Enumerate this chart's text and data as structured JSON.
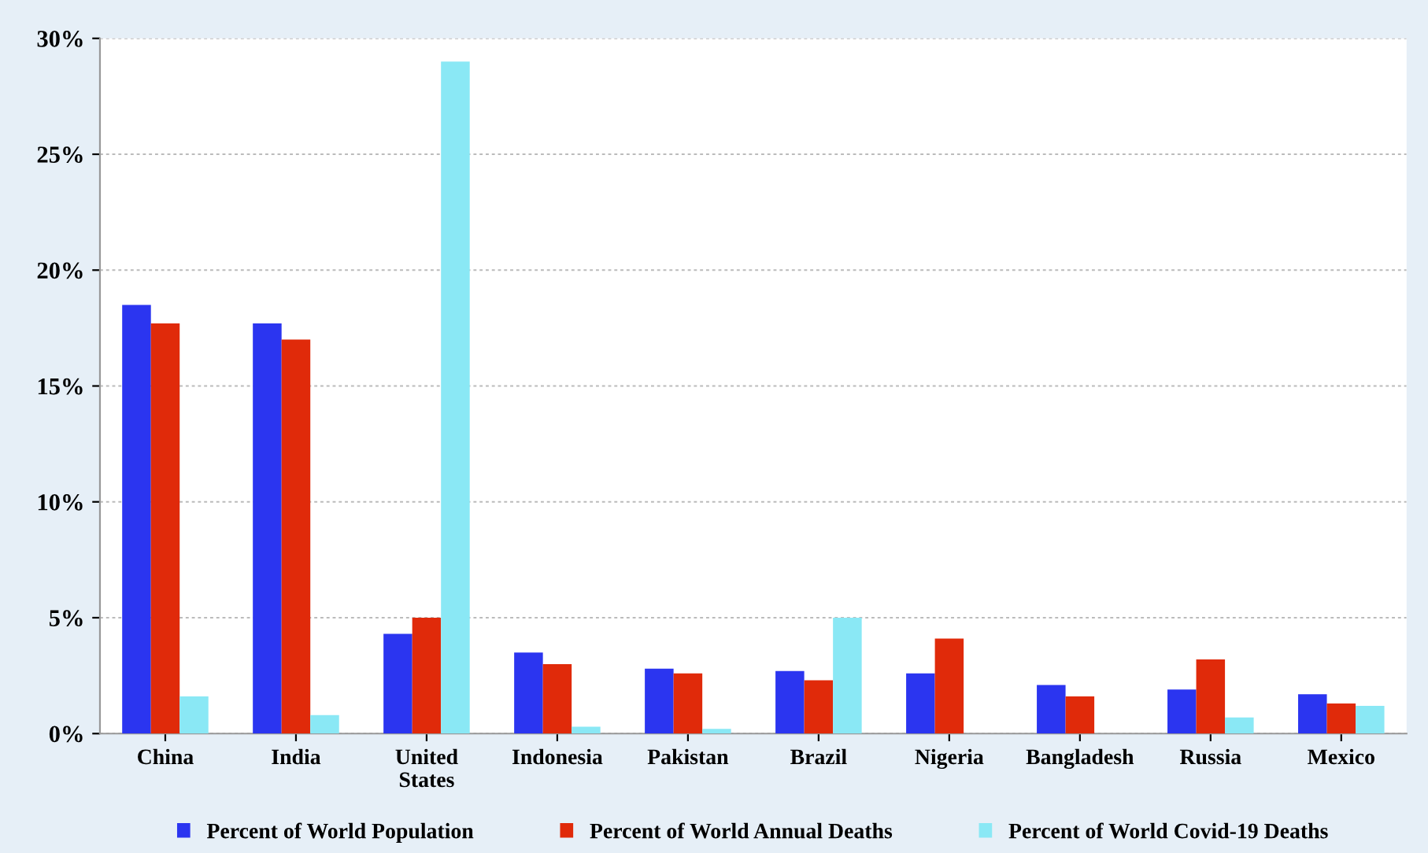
{
  "chart_data": {
    "type": "bar",
    "categories": [
      "China",
      "India",
      "United\nStates",
      "Indonesia",
      "Pakistan",
      "Brazil",
      "Nigeria",
      "Bangladesh",
      "Russia",
      "Mexico"
    ],
    "series": [
      {
        "name": "Percent of World Population",
        "color": "#2b35f0",
        "values": [
          18.5,
          17.7,
          4.3,
          3.5,
          2.8,
          2.7,
          2.6,
          2.1,
          1.9,
          1.7
        ]
      },
      {
        "name": "Percent of World Annual Deaths",
        "color": "#e02a0a",
        "values": [
          17.7,
          17.0,
          5.0,
          3.0,
          2.6,
          2.3,
          4.1,
          1.6,
          3.2,
          1.3
        ]
      },
      {
        "name": "Percent of World Covid-19 Deaths",
        "color": "#8ae8f5",
        "values": [
          1.6,
          0.8,
          29.0,
          0.3,
          0.2,
          5.0,
          null,
          null,
          0.7,
          1.2
        ]
      }
    ],
    "ylim": [
      0,
      30
    ],
    "yticks": [
      {
        "value": 0,
        "label": "0%"
      },
      {
        "value": 5,
        "label": "5%"
      },
      {
        "value": 10,
        "label": "10%"
      },
      {
        "value": 15,
        "label": "15%"
      },
      {
        "value": 20,
        "label": "20%"
      },
      {
        "value": 25,
        "label": "25%"
      },
      {
        "value": 30,
        "label": "30%"
      }
    ],
    "grid": "y",
    "legend": "bottom"
  }
}
